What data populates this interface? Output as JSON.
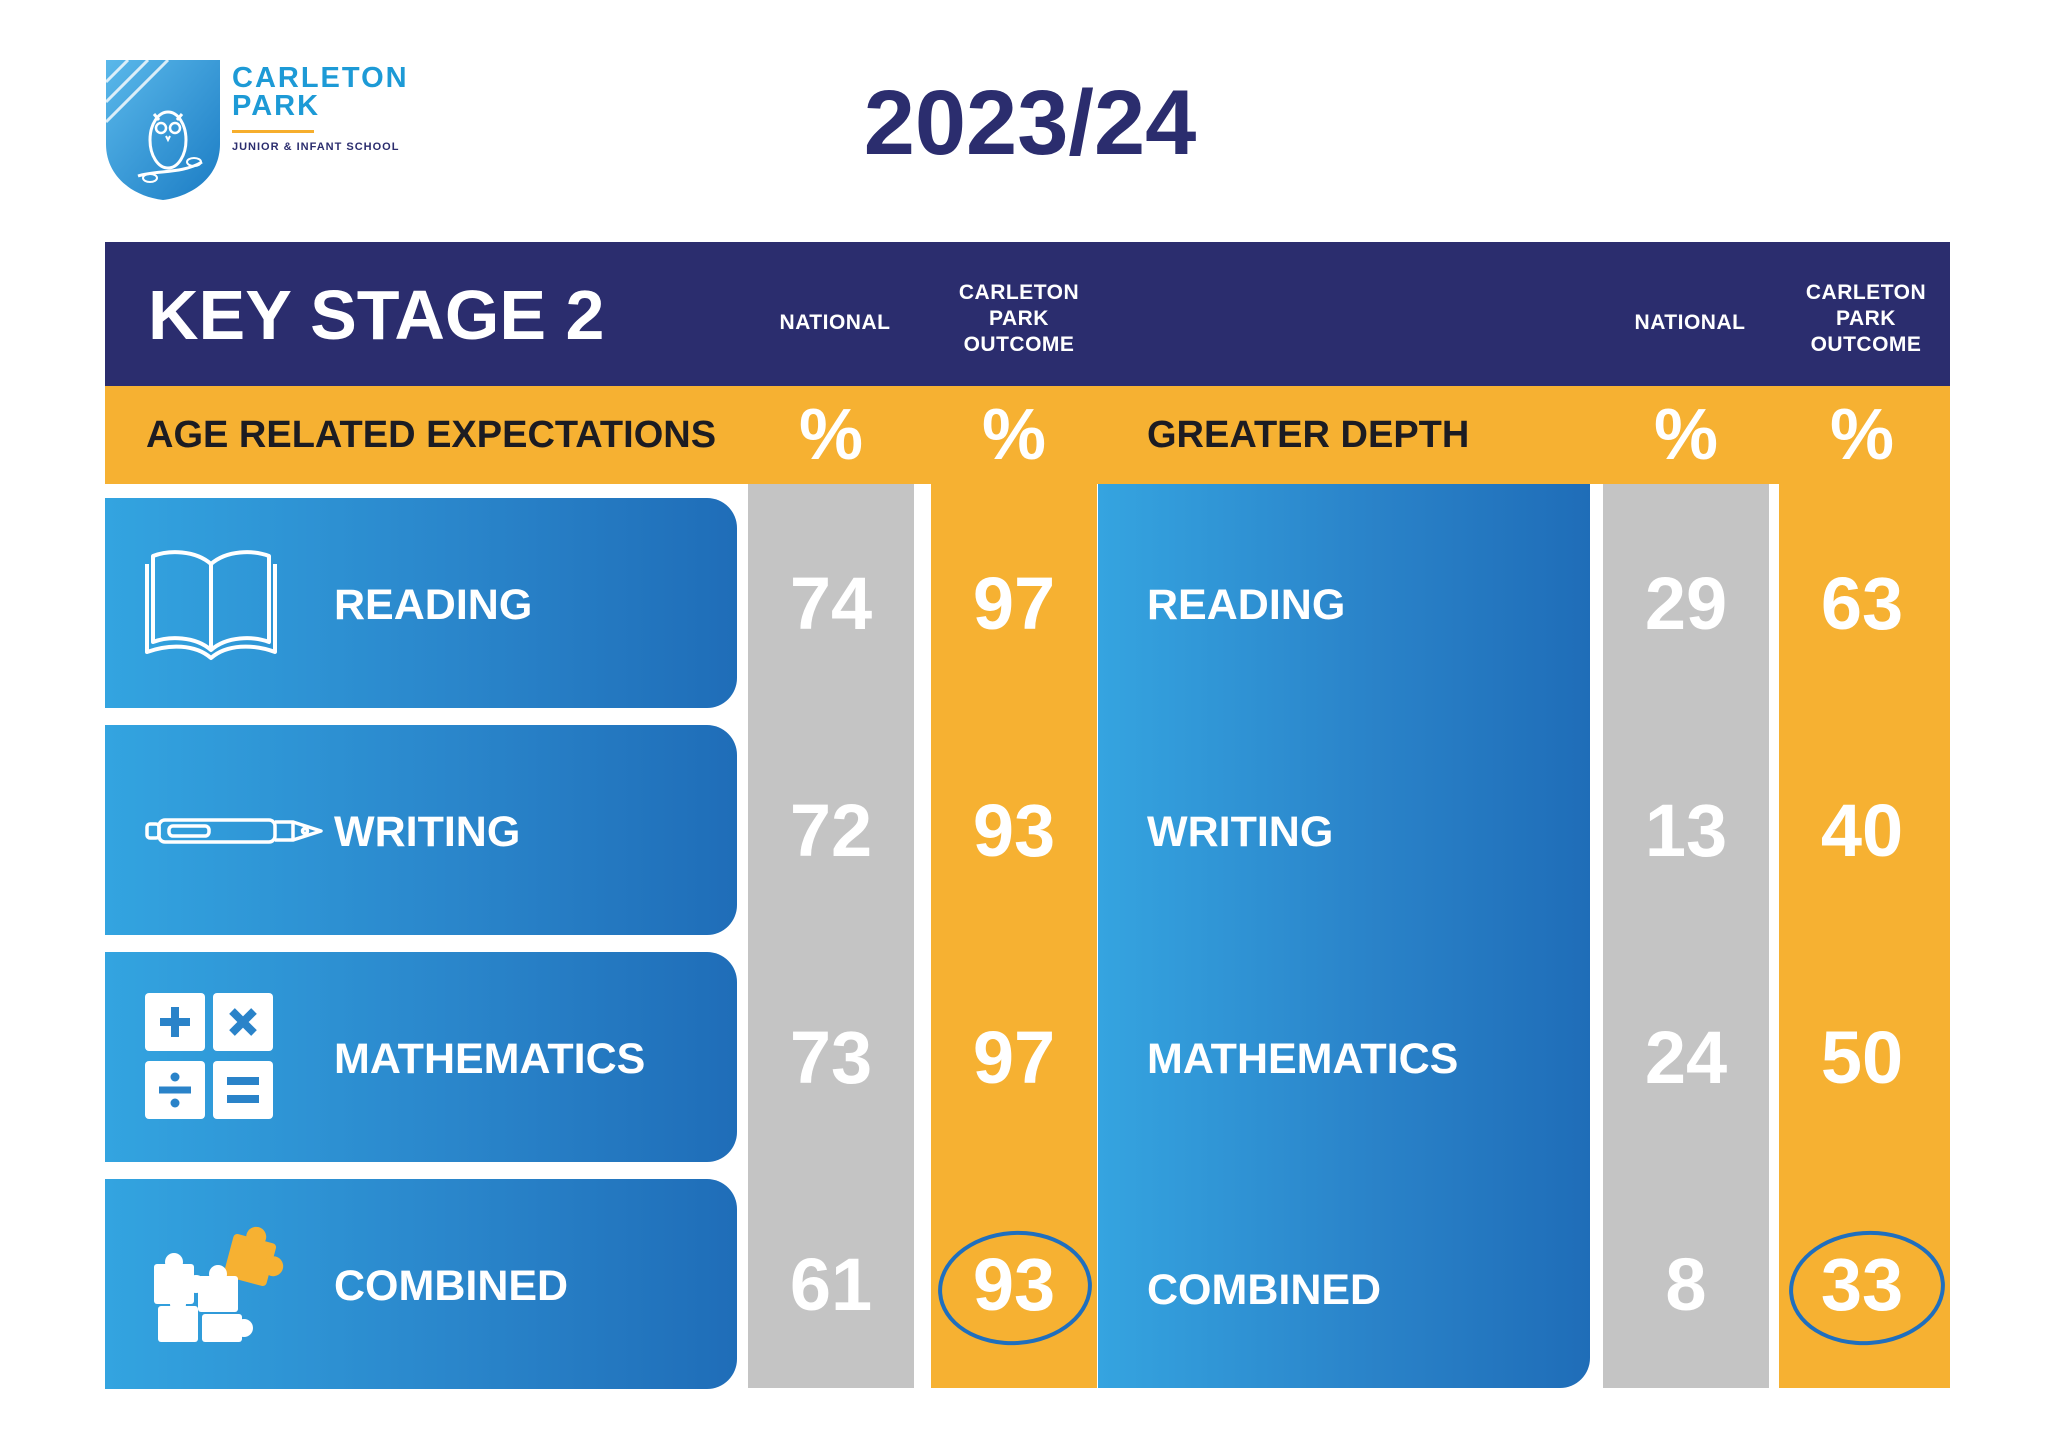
{
  "logo": {
    "name_line1": "CARLETON",
    "name_line2": "PARK",
    "subtitle": "JUNIOR & INFANT SCHOOL",
    "icon": "owl-shield-icon",
    "colors": {
      "blue": "#1d9ad6",
      "accent": "#f6ae2d"
    }
  },
  "year": "2023/24",
  "header": {
    "title": "KEY STAGE 2",
    "national_label": "NATIONAL",
    "outcome_label_lines": [
      "CARLETON",
      "PARK",
      "OUTCOME"
    ]
  },
  "sections": {
    "expected": {
      "label": "AGE RELATED EXPECTATIONS",
      "national_unit": "%",
      "outcome_unit": "%"
    },
    "greater_depth": {
      "label": "GREATER DEPTH",
      "national_unit": "%",
      "outcome_unit": "%"
    }
  },
  "subjects": [
    {
      "name": "READING",
      "icon": "book-icon",
      "expected_national": "74",
      "expected_outcome": "97",
      "gd_national": "29",
      "gd_outcome": "63"
    },
    {
      "name": "WRITING",
      "icon": "pen-icon",
      "expected_national": "72",
      "expected_outcome": "93",
      "gd_national": "13",
      "gd_outcome": "40"
    },
    {
      "name": "MATHEMATICS",
      "icon": "calculator-icon",
      "expected_national": "73",
      "expected_outcome": "97",
      "gd_national": "24",
      "gd_outcome": "50"
    },
    {
      "name": "COMBINED",
      "icon": "puzzle-icon",
      "expected_national": "61",
      "expected_outcome": "93",
      "gd_national": "8",
      "gd_outcome": "33",
      "outcome_circled": true
    }
  ],
  "colors": {
    "navy": "#2b2d6e",
    "orange": "#f6b132",
    "grey": "#c4c4c4",
    "blue_light": "#33a4e0",
    "blue_dark": "#1f6db8",
    "circle": "#1f6fbe"
  }
}
